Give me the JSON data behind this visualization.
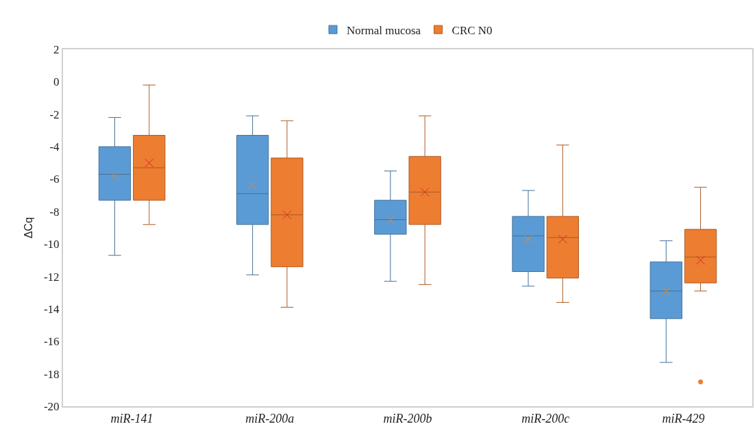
{
  "chart_data": {
    "type": "box",
    "ylabel": "ΔCq",
    "categories": [
      "miR-141",
      "miR-200a",
      "miR-200b",
      "miR-200c",
      "miR-429"
    ],
    "ylim": [
      -20,
      2
    ],
    "yticks": [
      -20,
      -18,
      -16,
      -14,
      -12,
      -10,
      -8,
      -6,
      -4,
      -2,
      0,
      2
    ],
    "grid": false,
    "legend": "top",
    "series": [
      {
        "name": "Normal mucosa",
        "color": "#5b9bd5",
        "boxes": [
          {
            "low": -10.7,
            "q1": -7.3,
            "median": -5.7,
            "q3": -4.0,
            "high": -2.2,
            "mean": -5.8
          },
          {
            "low": -11.9,
            "q1": -8.8,
            "median": -6.9,
            "q3": -3.3,
            "high": -2.1,
            "mean": -6.4
          },
          {
            "low": -12.3,
            "q1": -9.4,
            "median": -8.5,
            "q3": -7.3,
            "high": -5.5,
            "mean": -8.5
          },
          {
            "low": -12.6,
            "q1": -11.7,
            "median": -9.5,
            "q3": -8.3,
            "high": -6.7,
            "mean": -9.7
          },
          {
            "low": -17.3,
            "q1": -14.6,
            "median": -12.9,
            "q3": -11.1,
            "high": -9.8,
            "mean": -12.9
          }
        ]
      },
      {
        "name": "CRC N0",
        "color": "#ed7d31",
        "boxes": [
          {
            "low": -8.8,
            "q1": -7.3,
            "median": -5.3,
            "q3": -3.3,
            "high": -0.2,
            "mean": -5.0
          },
          {
            "low": -13.9,
            "q1": -11.4,
            "median": -8.2,
            "q3": -4.7,
            "high": -2.4,
            "mean": -8.2
          },
          {
            "low": -12.5,
            "q1": -8.8,
            "median": -6.8,
            "q3": -4.6,
            "high": -2.1,
            "mean": -6.8
          },
          {
            "low": -13.6,
            "q1": -12.1,
            "median": -9.6,
            "q3": -8.3,
            "high": -3.9,
            "mean": -9.7
          },
          {
            "low": -12.9,
            "q1": -12.4,
            "median": -10.8,
            "q3": -9.1,
            "high": -6.5,
            "mean": -11.0,
            "outliers": [
              -18.5
            ]
          }
        ]
      }
    ]
  }
}
